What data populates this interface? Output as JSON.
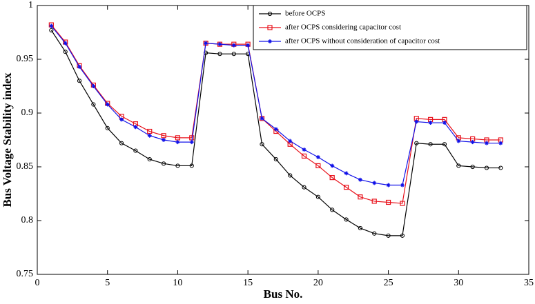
{
  "chart_data": {
    "type": "line",
    "xlabel": "Bus No.",
    "ylabel": "Bus Voltage Stability index",
    "x": [
      1,
      2,
      3,
      4,
      5,
      6,
      7,
      8,
      9,
      10,
      11,
      12,
      13,
      14,
      15,
      16,
      17,
      18,
      19,
      20,
      21,
      22,
      23,
      24,
      25,
      26,
      27,
      28,
      29,
      30,
      31,
      32,
      33
    ],
    "xlim": [
      0,
      35
    ],
    "xticks": [
      0,
      5,
      10,
      15,
      20,
      25,
      30,
      35
    ],
    "ylim": [
      0.75,
      1
    ],
    "yticks": [
      0.75,
      0.8,
      0.85,
      0.9,
      0.95,
      1
    ],
    "grid": false,
    "legend": "upper right",
    "series": [
      {
        "name": "before OCPS",
        "color": "#000000",
        "marker": "circle",
        "values": [
          0.977,
          0.957,
          0.93,
          0.908,
          0.886,
          0.872,
          0.865,
          0.857,
          0.853,
          0.851,
          0.851,
          0.956,
          0.955,
          0.955,
          0.955,
          0.871,
          0.857,
          0.842,
          0.831,
          0.822,
          0.81,
          0.801,
          0.793,
          0.788,
          0.786,
          0.786,
          0.872,
          0.871,
          0.871,
          0.851,
          0.85,
          0.849,
          0.849
        ]
      },
      {
        "name": "after OCPS considering capacitor cost",
        "color": "#e8101a",
        "marker": "square",
        "values": [
          0.982,
          0.966,
          0.944,
          0.926,
          0.909,
          0.897,
          0.89,
          0.883,
          0.879,
          0.877,
          0.877,
          0.965,
          0.964,
          0.964,
          0.964,
          0.895,
          0.883,
          0.871,
          0.86,
          0.851,
          0.84,
          0.831,
          0.822,
          0.818,
          0.817,
          0.816,
          0.895,
          0.894,
          0.894,
          0.877,
          0.876,
          0.875,
          0.875
        ]
      },
      {
        "name": "after OCPS without consideration of capacitor cost",
        "color": "#1010e8",
        "marker": "star",
        "values": [
          0.981,
          0.965,
          0.943,
          0.925,
          0.908,
          0.894,
          0.887,
          0.879,
          0.875,
          0.873,
          0.873,
          0.965,
          0.964,
          0.963,
          0.963,
          0.895,
          0.885,
          0.874,
          0.866,
          0.859,
          0.851,
          0.844,
          0.838,
          0.835,
          0.833,
          0.833,
          0.892,
          0.891,
          0.891,
          0.874,
          0.873,
          0.872,
          0.872
        ]
      }
    ]
  }
}
